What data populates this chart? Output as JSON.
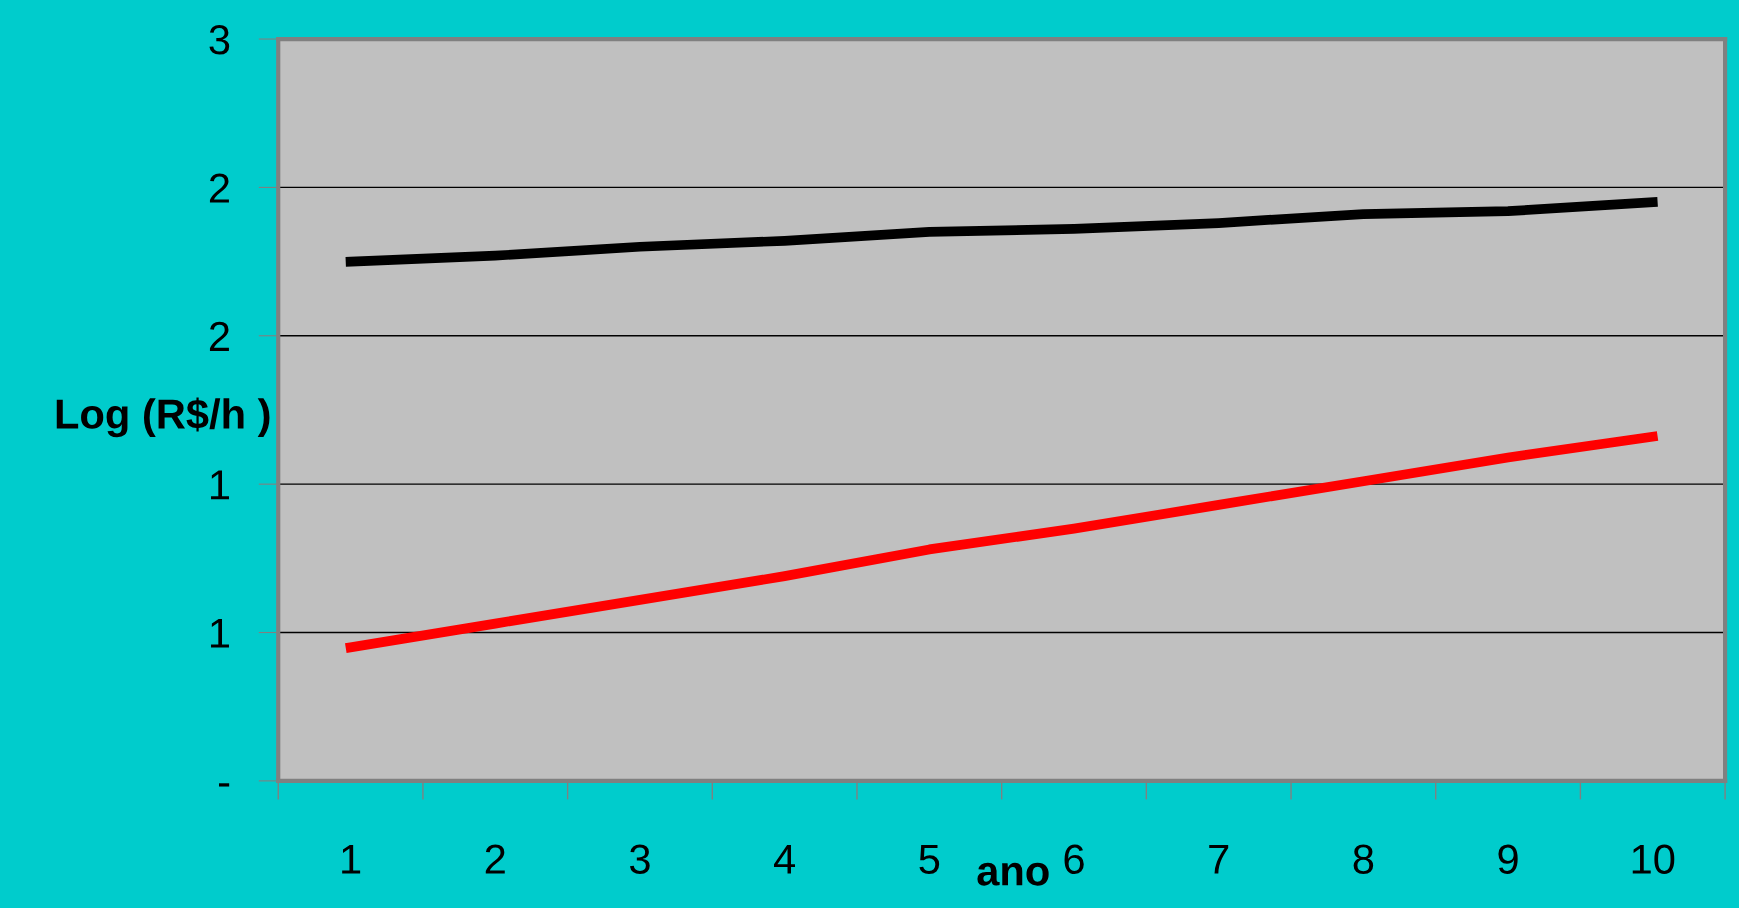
{
  "chart_data": {
    "type": "line",
    "xlabel": "ano",
    "ylabel": "Log (R$/h )",
    "categories": [
      "1",
      "2",
      "3",
      "4",
      "5",
      "6",
      "7",
      "8",
      "9",
      "10"
    ],
    "series": [
      {
        "color": "#000000",
        "values": [
          1.75,
          1.77,
          1.8,
          1.82,
          1.85,
          1.86,
          1.88,
          1.91,
          1.92,
          1.95
        ]
      },
      {
        "color": "#ff0000",
        "values": [
          0.45,
          0.53,
          0.61,
          0.69,
          0.78,
          0.85,
          0.93,
          1.01,
          1.09,
          1.16
        ]
      }
    ],
    "ylim": [
      0,
      2.5
    ],
    "yticks": [
      {
        "value": 0,
        "label": "-"
      },
      {
        "value": 0.5,
        "label": "1"
      },
      {
        "value": 1,
        "label": "1"
      },
      {
        "value": 1.5,
        "label": "2"
      },
      {
        "value": 2,
        "label": "2"
      },
      {
        "value": 2.5,
        "label": "3"
      }
    ],
    "grid": "y",
    "legend": false,
    "marker": "none",
    "line_style": "solid"
  }
}
